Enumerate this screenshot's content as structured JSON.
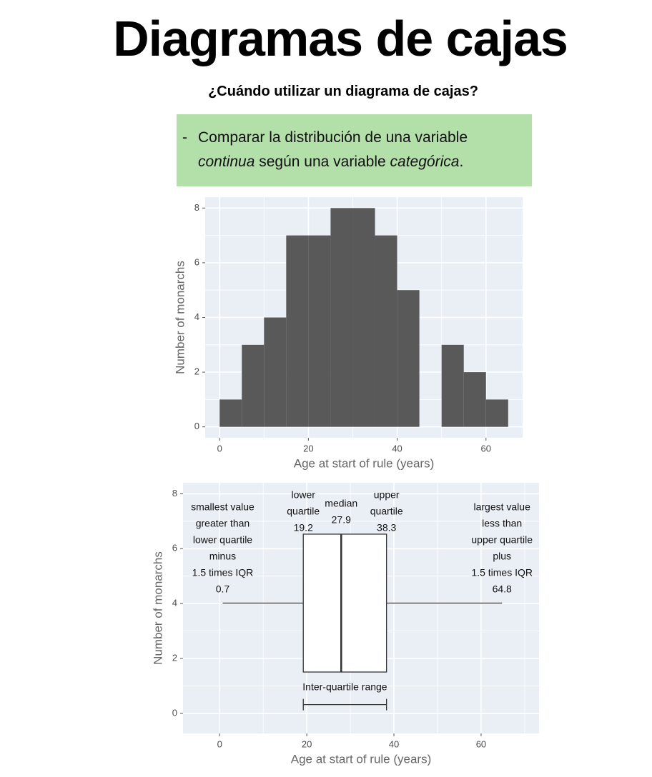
{
  "title": "Diagramas de cajas",
  "subtitle": "¿Cuándo utilizar un diagrama de cajas?",
  "note": {
    "bullet": "-",
    "parts": [
      {
        "text": "Comparar la distribución de una variable ",
        "italic": false
      },
      {
        "text": "continua",
        "italic": true
      },
      {
        "text": " según una variable ",
        "italic": false
      },
      {
        "text": "categórica",
        "italic": true
      },
      {
        "text": ".",
        "italic": false
      }
    ]
  },
  "chart_data": [
    {
      "type": "histogram",
      "xlabel": "Age at start of rule (years)",
      "ylabel": "Number of monarchs",
      "bins": [
        0,
        5,
        10,
        15,
        20,
        25,
        30,
        35,
        40,
        45,
        50,
        55,
        60,
        65
      ],
      "values": [
        1,
        3,
        4,
        7,
        7,
        8,
        8,
        7,
        5,
        0,
        3,
        2,
        1
      ],
      "color": "#595959",
      "background": "#eaeff6",
      "xlim": [
        -3.25,
        68.25
      ],
      "ylim": [
        -0.4,
        8.4
      ],
      "xticks": [
        0,
        20,
        40,
        60
      ],
      "yticks": [
        0,
        2,
        4,
        6,
        8
      ],
      "grid": true
    },
    {
      "type": "box",
      "xlabel": "Age at start of rule (years)",
      "ylabel": "Number of monarchs",
      "stats": {
        "whisker_low": 0.7,
        "q1": 19.2,
        "median": 27.9,
        "q3": 38.3,
        "whisker_high": 64.8
      },
      "annotations": {
        "whisker_low": [
          "smallest value",
          "greater than",
          "lower quartile",
          "minus",
          "1.5 times IQR"
        ],
        "q1": [
          "lower",
          "quartile"
        ],
        "median": [
          "median"
        ],
        "q3": [
          "upper",
          "quartile"
        ],
        "whisker_high": [
          "largest value",
          "less than",
          "upper quartile",
          "plus",
          "1.5 times IQR"
        ],
        "iqr": "Inter-quartile range"
      },
      "color": "#333333",
      "background": "#eaeff6",
      "xlim": [
        -8.4,
        73.3
      ],
      "ylim": [
        -0.73,
        8.4
      ],
      "xticks": [
        0,
        20,
        40,
        60
      ],
      "yticks": [
        0,
        2,
        4,
        6,
        8
      ],
      "grid": true
    }
  ]
}
